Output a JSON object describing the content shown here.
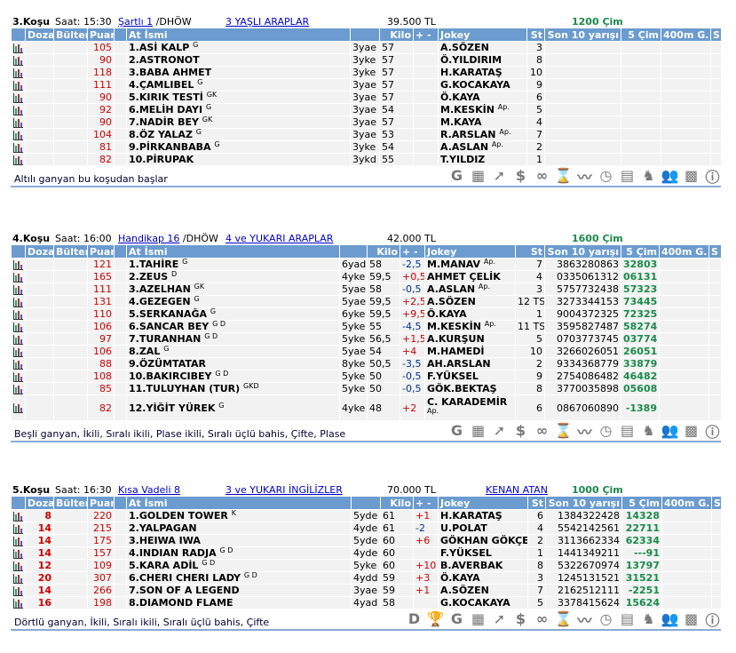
{
  "headers": {
    "dozaj": "Dozaj",
    "bulten": "Bülten",
    "puan": "Puan",
    "at": "At İsmi",
    "kilo": "Kilo",
    "pm": "+ -",
    "jokey": "Jokey",
    "st": "St",
    "son10": "Son 10 yarışı",
    "cim5": "5 Çim",
    "g400": "400m G.",
    "s": "S"
  },
  "colors": {
    "header": "#6b9bcf",
    "row": "#f2f2f2",
    "puan": "#cc0000",
    "green": "#1a8a4a",
    "link": "#0000cc"
  },
  "races": [
    {
      "kosu": "3.Koşu",
      "saat": "Saat: 15:30",
      "type": "Şartlı  1",
      "track": "/DHÖW",
      "group": "3 YAŞLI ARAPLAR",
      "prize": "39.500 TL",
      "trainer": "",
      "distance": "1200 Çim",
      "footer": "Altılı ganyan bu koşudan başlar",
      "icons": [
        "g-icon",
        "calculator-sheet-icon",
        "trend-up-icon",
        "dollar-icon",
        "binoculars-icon",
        "hourglass-icon",
        "line-chart-icon",
        "stopwatch-icon",
        "calculator-icon",
        "horse-icon",
        "people-icon",
        "racing-flag-icon",
        "info-icon"
      ],
      "rows": [
        {
          "doz": "",
          "puan": "105",
          "name": "1.ASİ KALP",
          "sup": "G",
          "age": "3yae",
          "kilo": "57",
          "pm": "",
          "jokey": "A.SÖZEN",
          "jsup": "",
          "st": "3",
          "son10": "",
          "cim5": ""
        },
        {
          "doz": "",
          "puan": "90",
          "name": "2.ASTRONOT",
          "sup": "",
          "age": "3yke",
          "kilo": "57",
          "pm": "",
          "jokey": "Ö.YILDIRIM",
          "jsup": "",
          "st": "8",
          "son10": "",
          "cim5": ""
        },
        {
          "doz": "",
          "puan": "118",
          "name": "3.BABA AHMET",
          "sup": "",
          "age": "3yke",
          "kilo": "57",
          "pm": "",
          "jokey": "H.KARATAŞ",
          "jsup": "",
          "st": "10",
          "son10": "",
          "cim5": ""
        },
        {
          "doz": "",
          "puan": "111",
          "name": "4.ÇAMLIBEL",
          "sup": "G",
          "age": "3yae",
          "kilo": "57",
          "pm": "",
          "jokey": "G.KOCAKAYA",
          "jsup": "",
          "st": "9",
          "son10": "",
          "cim5": ""
        },
        {
          "doz": "",
          "puan": "90",
          "name": "5.KIRIK TESTİ",
          "sup": "GK",
          "age": "3yae",
          "kilo": "57",
          "pm": "",
          "jokey": "Ö.KAYA",
          "jsup": "",
          "st": "6",
          "son10": "",
          "cim5": ""
        },
        {
          "doz": "",
          "puan": "92",
          "name": "6.MELİH DAYI",
          "sup": "G",
          "age": "3yae",
          "kilo": "54",
          "pm": "",
          "jokey": "M.KESKİN",
          "jsup": "Ap.",
          "st": "5",
          "son10": "",
          "cim5": ""
        },
        {
          "doz": "",
          "puan": "90",
          "name": "7.NADİR BEY",
          "sup": "GK",
          "age": "3yae",
          "kilo": "57",
          "pm": "",
          "jokey": "M.KAYA",
          "jsup": "",
          "st": "4",
          "son10": "",
          "cim5": ""
        },
        {
          "doz": "",
          "puan": "104",
          "name": "8.ÖZ YALAZ",
          "sup": "G",
          "age": "3yae",
          "kilo": "53",
          "pm": "",
          "jokey": "R.ARSLAN",
          "jsup": "Ap.",
          "st": "7",
          "son10": "",
          "cim5": ""
        },
        {
          "doz": "",
          "puan": "81",
          "name": "9.PİRKANBABA",
          "sup": "G",
          "age": "3yke",
          "kilo": "54",
          "pm": "",
          "jokey": "A.ASLAN",
          "jsup": "Ap.",
          "st": "2",
          "son10": "",
          "cim5": ""
        },
        {
          "doz": "",
          "puan": "82",
          "name": "10.PİRUPAK",
          "sup": "",
          "age": "3ykd",
          "kilo": "55",
          "pm": "",
          "jokey": "T.YILDIZ",
          "jsup": "",
          "st": "1",
          "son10": "",
          "cim5": ""
        }
      ]
    },
    {
      "kosu": "4.Koşu",
      "saat": "Saat: 16:00",
      "type": "Handikap  16",
      "track": "/DHÖW",
      "group": "4 ve YUKARI ARAPLAR",
      "prize": "42.000 TL",
      "trainer": "",
      "distance": "1600 Çim",
      "footer": "Beşli ganyan, İkili, Sıralı ikili, Plase ikili, Sıralı üçlü bahis, Çifte, Plase",
      "icons": [
        "g-icon",
        "calculator-sheet-icon",
        "trend-up-icon",
        "dollar-icon",
        "binoculars-icon",
        "hourglass-icon",
        "line-chart-icon",
        "stopwatch-icon",
        "calculator-icon",
        "horse-icon",
        "people-icon",
        "racing-flag-icon",
        "info-icon"
      ],
      "rows": [
        {
          "doz": "",
          "puan": "121",
          "name": "1.TAHİRE",
          "sup": "G",
          "age": "6yad",
          "kilo": "58",
          "pm": "-2,5",
          "jokey": "M.MANAV",
          "jsup": "Ap.",
          "st": "7",
          "son10": "3863280863",
          "cim5": "32803"
        },
        {
          "doz": "",
          "puan": "165",
          "name": "2.ZEUS",
          "sup": "D",
          "age": "4yke",
          "kilo": "59,5",
          "pm": "+0,5",
          "jokey": "AHMET ÇELİK",
          "jsup": "",
          "st": "4",
          "son10": "0335061312",
          "cim5": "06131"
        },
        {
          "doz": "",
          "puan": "111",
          "name": "3.AZELHAN",
          "sup": "GK",
          "age": "5yae",
          "kilo": "58",
          "pm": "-0,5",
          "jokey": "A.ASLAN",
          "jsup": "Ap.",
          "st": "3",
          "son10": "5757732438",
          "cim5": "57323"
        },
        {
          "doz": "",
          "puan": "131",
          "name": "4.GEZEGEN",
          "sup": "G",
          "age": "5yae",
          "kilo": "59,5",
          "pm": "+2,5",
          "jokey": "A.SÖZEN",
          "jsup": "",
          "st": "12 TS",
          "son10": "3273344153",
          "cim5": "73445"
        },
        {
          "doz": "",
          "puan": "110",
          "name": "5.SERKANAĞA",
          "sup": "G",
          "age": "6yke",
          "kilo": "59,5",
          "pm": "+9,5",
          "jokey": "Ö.KAYA",
          "jsup": "",
          "st": "1",
          "son10": "9004372325",
          "cim5": "72325"
        },
        {
          "doz": "",
          "puan": "106",
          "name": "6.SANCAR BEY",
          "sup": "G D",
          "age": "5yke",
          "kilo": "55",
          "pm": "-4,5",
          "jokey": "M.KESKİN",
          "jsup": "Ap.",
          "st": "11 TS",
          "son10": "3595827487",
          "cim5": "58274"
        },
        {
          "doz": "",
          "puan": "97",
          "name": "7.TURANHAN",
          "sup": "G D",
          "age": "5yke",
          "kilo": "56,5",
          "pm": "+1,5",
          "jokey": "A.KURŞUN",
          "jsup": "",
          "st": "5",
          "son10": "0703773745",
          "cim5": "03774"
        },
        {
          "doz": "",
          "puan": "106",
          "name": "8.ZAL",
          "sup": "G",
          "age": "5yae",
          "kilo": "54",
          "pm": "+4",
          "jokey": "M.HAMEDİ",
          "jsup": "",
          "st": "10",
          "son10": "3266026051",
          "cim5": "26051"
        },
        {
          "doz": "",
          "puan": "88",
          "name": "9.ÖZÜMTATAR",
          "sup": "",
          "age": "8yke",
          "kilo": "50,5",
          "pm": "-3,5",
          "jokey": "AH.ARSLAN",
          "jsup": "",
          "st": "2",
          "son10": "9334368779",
          "cim5": "33879"
        },
        {
          "doz": "",
          "puan": "108",
          "name": "10.BAKIRCIBEY",
          "sup": "G D",
          "age": "5yke",
          "kilo": "50",
          "pm": "-0,5",
          "jokey": "F.YÜKSEL",
          "jsup": "",
          "st": "9",
          "son10": "2754086482",
          "cim5": "46482"
        },
        {
          "doz": "",
          "puan": "85",
          "name": "11.TULUYHAN (TUR)",
          "sup": "GKD",
          "age": "5yke",
          "kilo": "50",
          "pm": "-0,5",
          "jokey": "GÖK.BEKTAŞ",
          "jsup": "",
          "st": "8",
          "son10": "3770035898",
          "cim5": "05608"
        },
        {
          "doz": "",
          "puan": "82",
          "name": "12.YİĞİT YÜREK",
          "sup": "G",
          "age": "4yke",
          "kilo": "48",
          "pm": "+2",
          "jokey": "C. KARADEMİR",
          "jsup": "Ap.",
          "st": "6",
          "son10": "0867060890",
          "cim5": "-1389"
        }
      ]
    },
    {
      "kosu": "5.Koşu",
      "saat": "Saat: 16:30",
      "type": "Kısa Vadeli  8",
      "track": "",
      "group": "3 ve YUKARI İNGİLİZLER",
      "prize": "70.000 TL",
      "trainer": "KENAN ATAN",
      "distance": "1000 Çim",
      "footer": "Dörtlü ganyan, İkili, Sıralı ikili, Sıralı üçlü bahis, Çifte",
      "icons": [
        "d-icon",
        "trophy-icon",
        "g-icon",
        "calculator-sheet-icon",
        "trend-up-icon",
        "dollar-icon",
        "binoculars-icon",
        "hourglass-icon",
        "line-chart-icon",
        "stopwatch-icon",
        "calculator-icon",
        "horse-icon",
        "people-icon",
        "racing-flag-icon",
        "info-icon"
      ],
      "rows": [
        {
          "doz": "8",
          "puan": "220",
          "name": "1.GOLDEN TOWER",
          "sup": "K",
          "age": "5yde",
          "kilo": "61",
          "pm": "+1",
          "jokey": "H.KARATAŞ",
          "jsup": "",
          "st": "6",
          "son10": "1384322428",
          "cim5": "14328"
        },
        {
          "doz": "14",
          "puan": "215",
          "name": "2.YALPAGAN",
          "sup": "",
          "age": "4yde",
          "kilo": "61",
          "pm": "-2",
          "jokey": "U.POLAT",
          "jsup": "",
          "st": "4",
          "son10": "5542142561",
          "cim5": "22711"
        },
        {
          "doz": "14",
          "puan": "175",
          "name": "3.HEIWA IWA",
          "sup": "",
          "age": "5yde",
          "kilo": "60",
          "pm": "+6",
          "jokey": "GÖKHAN GÖKÇE",
          "jsup": "",
          "st": "2",
          "son10": "3113662334",
          "cim5": "62334"
        },
        {
          "doz": "14",
          "puan": "157",
          "name": "4.INDIAN RADJA",
          "sup": "G D",
          "age": "4yde",
          "kilo": "60",
          "pm": "",
          "jokey": "F.YÜKSEL",
          "jsup": "",
          "st": "1",
          "son10": "1441349211",
          "cim5": "---91"
        },
        {
          "doz": "12",
          "puan": "109",
          "name": "5.KARA ADİL",
          "sup": "G D",
          "age": "5yke",
          "kilo": "60",
          "pm": "+10",
          "jokey": "B.AVERBAK",
          "jsup": "",
          "st": "8",
          "son10": "5322670974",
          "cim5": "13797"
        },
        {
          "doz": "20",
          "puan": "307",
          "name": "6.CHERI CHERI LADY",
          "sup": "G D",
          "age": "4ydd",
          "kilo": "59",
          "pm": "+3",
          "jokey": "Ö.KAYA",
          "jsup": "",
          "st": "3",
          "son10": "1245131521",
          "cim5": "31521"
        },
        {
          "doz": "14",
          "puan": "266",
          "name": "7.SON OF A LEGEND",
          "sup": "",
          "age": "3yae",
          "kilo": "59",
          "pm": "+1",
          "jokey": "A.SÖZEN",
          "jsup": "",
          "st": "7",
          "son10": "2162512111",
          "cim5": "-2251"
        },
        {
          "doz": "16",
          "puan": "198",
          "name": "8.DIAMOND FLAME",
          "sup": "",
          "age": "4yad",
          "kilo": "58",
          "pm": "",
          "jokey": "G.KOCAKAYA",
          "jsup": "",
          "st": "5",
          "son10": "3378415624",
          "cim5": "15624"
        }
      ]
    }
  ]
}
